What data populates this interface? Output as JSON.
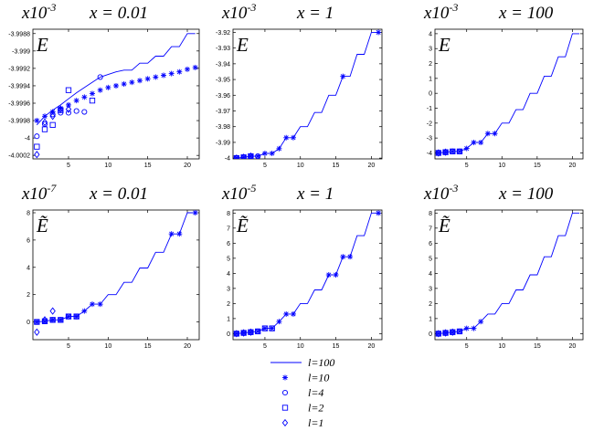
{
  "figure": {
    "legend": [
      {
        "label": "l=100",
        "marker": "line"
      },
      {
        "label": "l=10",
        "marker": "star"
      },
      {
        "label": "l=4",
        "marker": "circle"
      },
      {
        "label": "l=2",
        "marker": "square"
      },
      {
        "label": "l=1",
        "marker": "diamond"
      }
    ],
    "colors": {
      "series": "#0000ff",
      "axes": "#000000"
    }
  },
  "chart_data": [
    {
      "type": "line",
      "panel": "top-left",
      "scale_label": "x10-3",
      "scale_base": "x10",
      "scale_exp": "-3",
      "title": "x = 0.01",
      "ylabel": "E",
      "xlim": [
        0.5,
        21.5
      ],
      "ylim": [
        -4.00024,
        -3.99875
      ],
      "xticks": [
        "5",
        "10",
        "15",
        "20"
      ],
      "yticks": [
        "-3.9988",
        "-3.999",
        "-3.9992",
        "-3.9994",
        "-3.9996",
        "-3.9998",
        "-4",
        "-4.0002"
      ],
      "x": [
        1,
        2,
        3,
        4,
        5,
        6,
        7,
        8,
        9,
        10,
        11,
        12,
        13,
        14,
        15,
        16,
        17,
        18,
        19,
        20,
        21
      ],
      "series": [
        {
          "name": "l=100",
          "values": [
            -3.99985,
            -3.99975,
            -3.99968,
            -3.99962,
            -3.99955,
            -3.99948,
            -3.99942,
            -3.99936,
            -3.9993,
            -3.99927,
            -3.99924,
            -3.99922,
            -3.99922,
            -3.99914,
            -3.99914,
            -3.99906,
            -3.99906,
            -3.99895,
            -3.99895,
            -3.9988,
            -3.9988
          ]
        },
        {
          "name": "l=10",
          "values": [
            -3.9998,
            -3.99975,
            -3.9997,
            -3.99966,
            -3.99962,
            -3.99957,
            -3.99953,
            -3.99949,
            -3.99945,
            -3.99942,
            -3.9994,
            -3.99938,
            -3.99936,
            -3.99934,
            -3.99932,
            -3.9993,
            -3.99928,
            -3.99926,
            -3.99924,
            -3.99921,
            -3.99919
          ]
        },
        {
          "name": "l=4",
          "x": [
            1,
            2,
            3,
            4,
            5,
            6,
            7,
            9
          ],
          "values": [
            -3.99998,
            -3.99984,
            -3.99973,
            -3.99971,
            -3.99971,
            -3.99969,
            -3.9997,
            -3.9993
          ]
        },
        {
          "name": "l=2",
          "x": [
            1,
            2,
            3,
            4,
            5,
            8
          ],
          "values": [
            -4.0001,
            -3.9999,
            -3.99985,
            -3.99968,
            -3.99945,
            -3.99957
          ]
        },
        {
          "name": "l=1",
          "x": [
            1,
            2,
            3,
            4,
            5
          ],
          "values": [
            -4.00019,
            -3.99982,
            -3.99975,
            -3.99967,
            -3.99967
          ]
        }
      ]
    },
    {
      "type": "line",
      "panel": "top-middle",
      "scale_label": "x10-3",
      "scale_base": "x10",
      "scale_exp": "-3",
      "title": "x = 1",
      "ylabel": "E",
      "xlim": [
        0.5,
        21.5
      ],
      "ylim": [
        -4.0005,
        -3.918
      ],
      "xticks": [
        "5",
        "10",
        "15",
        "20"
      ],
      "yticks": [
        "-3.92",
        "-3.93",
        "-3.94",
        "-3.95",
        "-3.96",
        "-3.97",
        "-3.98",
        "-3.99",
        "-4"
      ],
      "x": [
        1,
        2,
        3,
        4,
        5,
        6,
        7,
        8,
        9,
        10,
        11,
        12,
        13,
        14,
        15,
        16,
        17,
        18,
        19,
        20,
        21
      ],
      "series": [
        {
          "name": "l=100",
          "values": [
            -4,
            -3.9995,
            -3.9988,
            -3.9988,
            -3.997,
            -3.997,
            -3.994,
            -3.987,
            -3.987,
            -3.98,
            -3.98,
            -3.971,
            -3.971,
            -3.96,
            -3.96,
            -3.948,
            -3.948,
            -3.934,
            -3.934,
            -3.92,
            -3.92
          ]
        },
        {
          "name": "l=10",
          "x": [
            1,
            2,
            3,
            4,
            5,
            6,
            7,
            8,
            9,
            16,
            21
          ],
          "values": [
            -4,
            -3.9995,
            -3.9988,
            -3.9988,
            -3.997,
            -3.997,
            -3.994,
            -3.987,
            -3.987,
            -3.948,
            -3.92
          ]
        },
        {
          "name": "l=4",
          "x": [
            1,
            2,
            3,
            4
          ],
          "values": [
            -4,
            -3.9995,
            -3.9988,
            -3.9988
          ]
        },
        {
          "name": "l=2",
          "x": [
            1,
            2,
            3
          ],
          "values": [
            -4,
            -3.9995,
            -3.9988
          ]
        },
        {
          "name": "l=1",
          "x": [
            1,
            2,
            3
          ],
          "values": [
            -4,
            -3.9995,
            -3.9988
          ]
        }
      ]
    },
    {
      "type": "line",
      "panel": "top-right",
      "scale_label": "x10-3",
      "scale_base": "x10",
      "scale_exp": "-3",
      "title": "x = 100",
      "ylabel": "E",
      "xlim": [
        0.5,
        21.5
      ],
      "ylim": [
        -4.4,
        4.3
      ],
      "xticks": [
        "5",
        "10",
        "15",
        "20"
      ],
      "yticks": [
        "4",
        "3",
        "2",
        "1",
        "0",
        "-1",
        "-2",
        "-3",
        "-4"
      ],
      "x": [
        1,
        2,
        3,
        4,
        5,
        6,
        7,
        8,
        9,
        10,
        11,
        12,
        13,
        14,
        15,
        16,
        17,
        18,
        19,
        20,
        21
      ],
      "series": [
        {
          "name": "l=100",
          "values": [
            -4,
            -3.95,
            -3.9,
            -3.9,
            -3.7,
            -3.3,
            -3.3,
            -2.7,
            -2.7,
            -2,
            -2,
            -1.1,
            -1.1,
            0,
            0,
            1.15,
            1.15,
            2.45,
            2.45,
            4,
            4
          ]
        },
        {
          "name": "l=10",
          "x": [
            1,
            2,
            3,
            4,
            5,
            6,
            7,
            8,
            9
          ],
          "values": [
            -4,
            -3.95,
            -3.9,
            -3.9,
            -3.7,
            -3.3,
            -3.3,
            -2.7,
            -2.7
          ]
        },
        {
          "name": "l=4",
          "x": [
            1,
            2,
            3,
            4
          ],
          "values": [
            -4,
            -3.95,
            -3.9,
            -3.9
          ]
        },
        {
          "name": "l=2",
          "x": [
            1,
            2,
            3,
            4
          ],
          "values": [
            -4,
            -3.95,
            -3.9,
            -3.9
          ]
        },
        {
          "name": "l=1",
          "x": [
            1,
            2
          ],
          "values": [
            -4,
            -3.95
          ]
        }
      ]
    },
    {
      "type": "line",
      "panel": "bottom-left",
      "scale_label": "x10-7",
      "scale_base": "x10",
      "scale_exp": "-7",
      "title": "x = 0.01",
      "ylabel": "Ẽ",
      "xlim": [
        0.5,
        21.5
      ],
      "ylim": [
        -1.3,
        8.2
      ],
      "xticks": [
        "5",
        "10",
        "15",
        "20"
      ],
      "yticks": [
        "8",
        "6",
        "4",
        "2",
        "0"
      ],
      "x": [
        1,
        2,
        3,
        4,
        5,
        6,
        7,
        8,
        9,
        10,
        11,
        12,
        13,
        14,
        15,
        16,
        17,
        18,
        19,
        20,
        21
      ],
      "series": [
        {
          "name": "l=100",
          "values": [
            0,
            0.05,
            0.15,
            0.15,
            0.4,
            0.4,
            0.8,
            1.3,
            1.3,
            2,
            2,
            2.9,
            2.9,
            3.95,
            3.95,
            5.1,
            5.1,
            6.45,
            6.45,
            8,
            8
          ]
        },
        {
          "name": "l=10",
          "x": [
            1,
            2,
            3,
            4,
            5,
            6,
            7,
            8,
            9,
            18,
            19,
            21
          ],
          "values": [
            0,
            0.05,
            0.15,
            0.15,
            0.4,
            0.4,
            0.8,
            1.3,
            1.3,
            6.45,
            6.45,
            8
          ]
        },
        {
          "name": "l=4",
          "x": [
            1,
            2,
            3,
            4,
            5,
            6
          ],
          "values": [
            0,
            0.05,
            0.15,
            0.15,
            0.4,
            0.4
          ]
        },
        {
          "name": "l=2",
          "x": [
            1,
            2,
            3,
            4,
            5,
            6
          ],
          "values": [
            0,
            0.05,
            0.15,
            0.15,
            0.4,
            0.4
          ]
        },
        {
          "name": "l=1",
          "x": [
            1,
            2,
            3
          ],
          "values": [
            -0.75,
            0.15,
            0.8
          ]
        }
      ]
    },
    {
      "type": "line",
      "panel": "bottom-middle",
      "scale_label": "x10-5",
      "scale_base": "x10",
      "scale_exp": "-5",
      "title": "x = 1",
      "ylabel": "Ẽ",
      "xlim": [
        0.5,
        21.5
      ],
      "ylim": [
        -0.4,
        8.2
      ],
      "xticks": [
        "5",
        "10",
        "15",
        "20"
      ],
      "yticks": [
        "8",
        "7",
        "6",
        "5",
        "4",
        "3",
        "2",
        "1",
        "0"
      ],
      "x": [
        1,
        2,
        3,
        4,
        5,
        6,
        7,
        8,
        9,
        10,
        11,
        12,
        13,
        14,
        15,
        16,
        17,
        18,
        19,
        20,
        21
      ],
      "series": [
        {
          "name": "l=100",
          "values": [
            0,
            0.05,
            0.1,
            0.15,
            0.35,
            0.35,
            0.8,
            1.3,
            1.3,
            2,
            2,
            2.9,
            2.9,
            3.9,
            3.9,
            5.1,
            5.1,
            6.5,
            6.5,
            8,
            8
          ]
        },
        {
          "name": "l=10",
          "x": [
            1,
            2,
            3,
            4,
            5,
            6,
            7,
            8,
            9,
            14,
            15,
            16,
            17,
            21
          ],
          "values": [
            0,
            0.05,
            0.1,
            0.15,
            0.35,
            0.35,
            0.8,
            1.3,
            1.3,
            3.9,
            3.9,
            5.1,
            5.1,
            8
          ]
        },
        {
          "name": "l=4",
          "x": [
            1,
            2,
            3,
            4
          ],
          "values": [
            0,
            0.05,
            0.1,
            0.15
          ]
        },
        {
          "name": "l=2",
          "x": [
            1,
            2,
            3,
            4,
            5,
            6
          ],
          "values": [
            0,
            0.05,
            0.1,
            0.15,
            0.35,
            0.35
          ]
        },
        {
          "name": "l=1",
          "x": [
            1,
            2,
            3
          ],
          "values": [
            0,
            0.05,
            0.1
          ]
        }
      ]
    },
    {
      "type": "line",
      "panel": "bottom-right",
      "scale_label": "x10-3",
      "scale_base": "x10",
      "scale_exp": "-3",
      "title": "x = 100",
      "ylabel": "Ẽ",
      "xlim": [
        0.5,
        21.5
      ],
      "ylim": [
        -0.4,
        8.2
      ],
      "xticks": [
        "5",
        "10",
        "15",
        "20"
      ],
      "yticks": [
        "8",
        "7",
        "6",
        "5",
        "4",
        "3",
        "2",
        "1",
        "0"
      ],
      "x": [
        1,
        2,
        3,
        4,
        5,
        6,
        7,
        8,
        9,
        10,
        11,
        12,
        13,
        14,
        15,
        16,
        17,
        18,
        19,
        20,
        21
      ],
      "series": [
        {
          "name": "l=100",
          "values": [
            0,
            0.05,
            0.1,
            0.15,
            0.35,
            0.35,
            0.8,
            1.3,
            1.3,
            2,
            2,
            2.9,
            2.9,
            3.9,
            3.9,
            5.1,
            5.1,
            6.5,
            6.5,
            8,
            8
          ]
        },
        {
          "name": "l=10",
          "x": [
            1,
            2,
            3,
            4,
            5,
            6,
            7
          ],
          "values": [
            0,
            0.05,
            0.1,
            0.15,
            0.35,
            0.35,
            0.8
          ]
        },
        {
          "name": "l=4",
          "x": [
            1,
            2,
            3,
            4
          ],
          "values": [
            0,
            0.05,
            0.1,
            0.15
          ]
        },
        {
          "name": "l=2",
          "x": [
            1,
            2,
            3,
            4
          ],
          "values": [
            0,
            0.05,
            0.1,
            0.15
          ]
        },
        {
          "name": "l=1",
          "x": [
            1,
            2,
            3
          ],
          "values": [
            0,
            0.05,
            0.1
          ]
        }
      ]
    }
  ]
}
